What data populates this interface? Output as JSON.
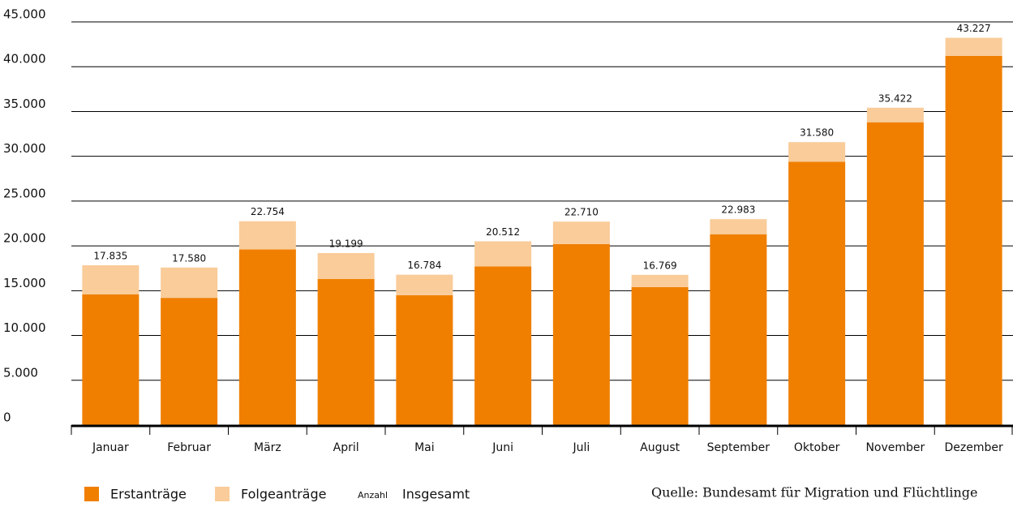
{
  "chart_data": {
    "type": "stacked_bar",
    "categories": [
      "Januar",
      "Februar",
      "März",
      "April",
      "Mai",
      "Juni",
      "Juli",
      "August",
      "September",
      "Oktober",
      "November",
      "Dezember"
    ],
    "series": [
      {
        "name": "Erstanträge",
        "color": "#f07f00",
        "values": [
          14600,
          14200,
          19600,
          16300,
          14500,
          17700,
          20200,
          15400,
          21300,
          29400,
          33800,
          41200
        ]
      },
      {
        "name": "Folgeanträge",
        "color": "#f9cc9a",
        "values": [
          3235,
          3380,
          3154,
          2899,
          2284,
          2812,
          2510,
          1369,
          1683,
          2180,
          1622,
          2027
        ]
      }
    ],
    "totals": {
      "name": "Insgesamt",
      "unit_label": "Anzahl",
      "values": [
        17835,
        17580,
        22754,
        19199,
        16784,
        20512,
        22710,
        16769,
        22983,
        31580,
        35422,
        43227
      ],
      "value_labels": [
        "17.835",
        "17.580",
        "22.754",
        "19.199",
        "16.784",
        "20.512",
        "22.710",
        "16.769",
        "22.983",
        "31.580",
        "35.422",
        "43.227"
      ]
    },
    "ylim": [
      0,
      45000
    ],
    "yticks": [
      0,
      {
        "value": 5000,
        "label": "5.000"
      },
      {
        "value": 10000,
        "label": "10.000"
      },
      {
        "value": 15000,
        "label": "15.000"
      },
      {
        "value": 20000,
        "label": "20.000"
      },
      {
        "value": 25000,
        "label": "25.000"
      },
      {
        "value": 30000,
        "label": "30.000"
      },
      {
        "value": 35000,
        "label": "35.000"
      },
      {
        "value": 40000,
        "label": "40.000"
      },
      {
        "value": 45000,
        "label": "45.000"
      }
    ],
    "grid": true,
    "source": "Quelle: Bundesamt für Migration und Flüchtlinge"
  }
}
